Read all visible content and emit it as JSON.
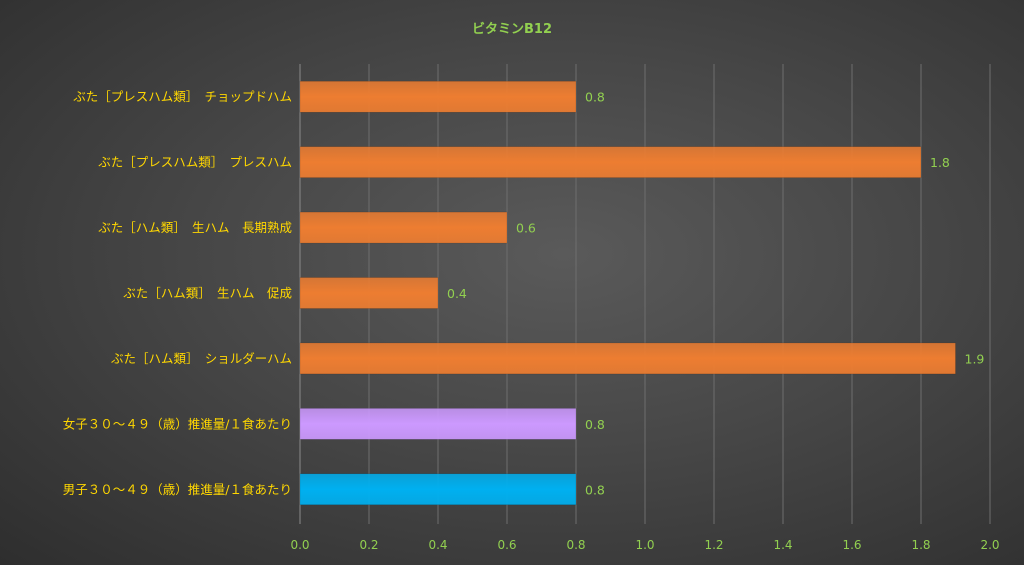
{
  "chart_data": {
    "type": "bar",
    "orientation": "horizontal",
    "title": "ビタミンB12",
    "categories": [
      "ぶた［プレスハム類］　チョップドハム",
      "ぶた［プレスハム類］　プレスハム",
      "ぶた［ハム類］　生ハム　長期熟成",
      "ぶた［ハム類］　生ハム　促成",
      "ぶた［ハム類］　ショルダーハム",
      "女子３０～４９（歳）推進量/１食あたり",
      "男子３０～４９（歳）推進量/１食あたり"
    ],
    "values": [
      0.8,
      1.8,
      0.6,
      0.4,
      1.9,
      0.8,
      0.8
    ],
    "value_labels": [
      "0.8",
      "1.8",
      "0.6",
      "0.4",
      "1.9",
      "0.8",
      "0.8"
    ],
    "bar_colors": [
      "#ed7d31",
      "#ed7d31",
      "#ed7d31",
      "#ed7d31",
      "#ed7d31",
      "#cc99ff",
      "#00b0f0"
    ],
    "xlim": [
      0,
      2.0
    ],
    "x_ticks": [
      "0.0",
      "0.2",
      "0.4",
      "0.6",
      "0.8",
      "1.0",
      "1.2",
      "1.4",
      "1.6",
      "1.8",
      "2.0"
    ],
    "xlabel": "",
    "ylabel": "",
    "grid": true,
    "legend": "none"
  }
}
